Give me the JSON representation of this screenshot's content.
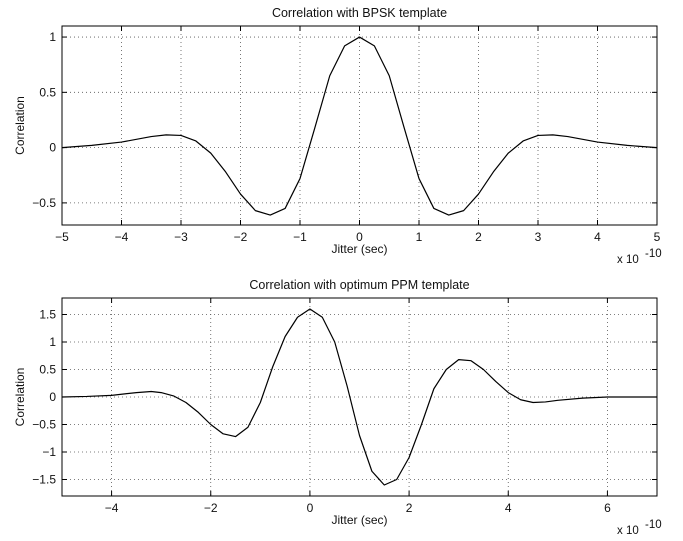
{
  "chart_data": [
    {
      "type": "line",
      "title": "Correlation with BPSK template",
      "xlabel": "Jitter (sec)",
      "ylabel": "Correlation",
      "x_multiplier": "x 10",
      "x_exponent": "-10",
      "xlim": [
        -5,
        5
      ],
      "ylim": [
        -0.7,
        1.1
      ],
      "xticks": [
        -5,
        -4,
        -3,
        -2,
        -1,
        0,
        1,
        2,
        3,
        4,
        5
      ],
      "xtick_labels": [
        "−5",
        "−4",
        "−3",
        "−2",
        "−1",
        "0",
        "1",
        "2",
        "3",
        "4",
        "5"
      ],
      "yticks": [
        -0.5,
        0,
        0.5,
        1
      ],
      "ytick_labels": [
        "−0.5",
        "0",
        "0.5",
        "1"
      ],
      "grid": true,
      "series": [
        {
          "color": "#000000",
          "x": [
            -5,
            -4.5,
            -4,
            -3.5,
            -3.25,
            -3,
            -2.75,
            -2.5,
            -2.25,
            -2,
            -1.75,
            -1.5,
            -1.25,
            -1,
            -0.75,
            -0.5,
            -0.25,
            0,
            0.25,
            0.5,
            0.75,
            1,
            1.25,
            1.5,
            1.75,
            2,
            2.25,
            2.5,
            2.75,
            3,
            3.25,
            3.5,
            4,
            4.5,
            5
          ],
          "y": [
            0.0,
            0.02,
            0.05,
            0.1,
            0.115,
            0.11,
            0.06,
            -0.05,
            -0.22,
            -0.42,
            -0.57,
            -0.61,
            -0.55,
            -0.28,
            0.18,
            0.65,
            0.92,
            1.0,
            0.92,
            0.65,
            0.18,
            -0.28,
            -0.55,
            -0.61,
            -0.57,
            -0.42,
            -0.22,
            -0.05,
            0.06,
            0.11,
            0.115,
            0.1,
            0.05,
            0.02,
            0.0
          ]
        }
      ]
    },
    {
      "type": "line",
      "title": "Correlation with optimum PPM template",
      "xlabel": "Jitter (sec)",
      "ylabel": "Correlation",
      "x_multiplier": "x 10",
      "x_exponent": "-10",
      "xlim": [
        -5,
        7
      ],
      "ylim": [
        -1.8,
        1.8
      ],
      "xticks": [
        -4,
        -2,
        0,
        2,
        4,
        6
      ],
      "xtick_labels": [
        "−4",
        "−2",
        "0",
        "2",
        "4",
        "6"
      ],
      "yticks": [
        -1.5,
        -1,
        -0.5,
        0,
        0.5,
        1,
        1.5
      ],
      "ytick_labels": [
        "−1.5",
        "−1",
        "−0.5",
        "0",
        "0.5",
        "1",
        "1.5"
      ],
      "grid": true,
      "series": [
        {
          "color": "#000000",
          "x": [
            -5,
            -4.5,
            -4,
            -3.5,
            -3.2,
            -3,
            -2.75,
            -2.5,
            -2.25,
            -2,
            -1.75,
            -1.5,
            -1.25,
            -1,
            -0.75,
            -0.5,
            -0.25,
            0,
            0.25,
            0.5,
            0.75,
            1,
            1.25,
            1.5,
            1.75,
            2,
            2.25,
            2.5,
            2.75,
            3,
            3.25,
            3.5,
            3.75,
            4,
            4.25,
            4.5,
            4.75,
            5,
            5.5,
            6,
            6.5,
            7
          ],
          "y": [
            0.0,
            0.01,
            0.03,
            0.08,
            0.1,
            0.08,
            0.02,
            -0.1,
            -0.28,
            -0.5,
            -0.67,
            -0.72,
            -0.55,
            -0.1,
            0.55,
            1.1,
            1.45,
            1.6,
            1.45,
            1.0,
            0.2,
            -0.7,
            -1.35,
            -1.6,
            -1.5,
            -1.1,
            -0.5,
            0.15,
            0.5,
            0.68,
            0.66,
            0.5,
            0.28,
            0.08,
            -0.05,
            -0.1,
            -0.09,
            -0.06,
            -0.02,
            0.0,
            0.0,
            0.0
          ]
        }
      ]
    }
  ]
}
